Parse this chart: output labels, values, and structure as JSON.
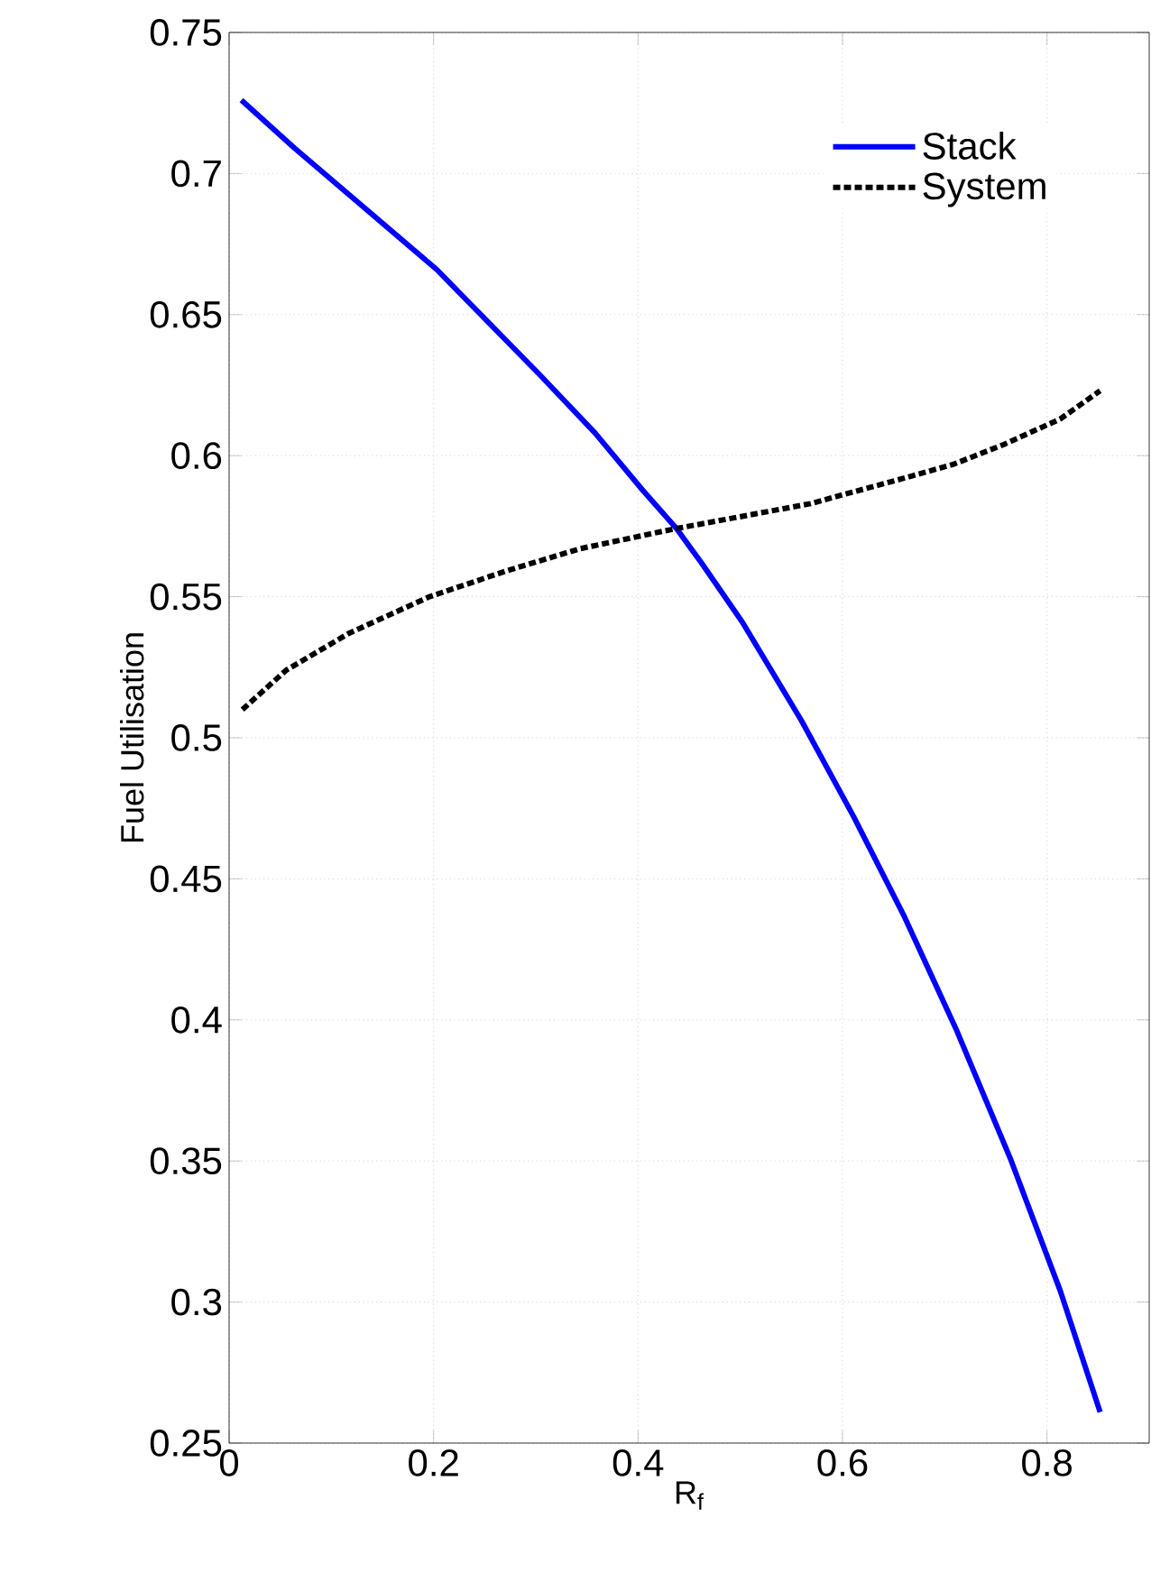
{
  "chart_data": {
    "type": "line",
    "xlabel": "R$_{f}$",
    "ylabel": "Fuel Utilisation",
    "xlim": [
      0,
      0.9
    ],
    "ylim": [
      0.25,
      0.75
    ],
    "xticks": [
      0,
      0.2,
      0.4,
      0.6,
      0.8
    ],
    "yticks": [
      0.25,
      0.3,
      0.35,
      0.4,
      0.45,
      0.5,
      0.55,
      0.6,
      0.65,
      0.7,
      0.75
    ],
    "grid": true,
    "legend": "top right",
    "marker": "none",
    "series": [
      {
        "name": "Stack",
        "color": "#0000ff",
        "line_style": "solid",
        "x": [
          0.012,
          0.064,
          0.203,
          0.303,
          0.358,
          0.404,
          0.438,
          0.462,
          0.502,
          0.56,
          0.611,
          0.66,
          0.712,
          0.764,
          0.813,
          0.852
        ],
        "values": [
          0.726,
          0.709,
          0.666,
          0.629,
          0.608,
          0.588,
          0.574,
          0.562,
          0.541,
          0.506,
          0.472,
          0.437,
          0.396,
          0.351,
          0.304,
          0.261
        ]
      },
      {
        "name": "System",
        "color": "#000000",
        "line_style": "dashed",
        "x": [
          0.013,
          0.056,
          0.117,
          0.196,
          0.27,
          0.343,
          0.435,
          0.569,
          0.599,
          0.66,
          0.709,
          0.758,
          0.813,
          0.852
        ],
        "values": [
          0.51,
          0.524,
          0.537,
          0.55,
          0.559,
          0.567,
          0.574,
          0.583,
          0.586,
          0.592,
          0.597,
          0.604,
          0.613,
          0.623
        ]
      }
    ]
  }
}
